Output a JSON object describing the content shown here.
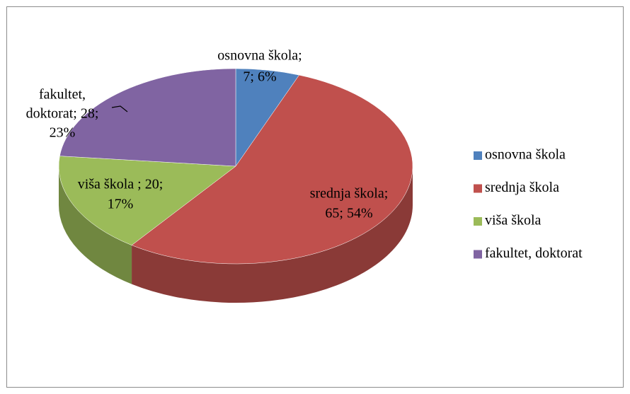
{
  "chart_data": {
    "type": "pie3d",
    "categories": [
      "osnovna škola",
      "srednja škola",
      "viša škola",
      "fakultet, doktorat"
    ],
    "values": [
      7,
      65,
      20,
      28
    ],
    "value_labels": [
      [
        "osnovna škola;",
        "7; 6%"
      ],
      [
        "srednja škola;",
        "65; 54%"
      ],
      [
        "viša škola ; 20;",
        "17%"
      ],
      [
        "fakultet,",
        "doktorat; 28;",
        "23%"
      ]
    ],
    "colors": [
      "#4f81bd",
      "#c0504d",
      "#9bbb59",
      "#8064a2"
    ],
    "legend": "right"
  }
}
